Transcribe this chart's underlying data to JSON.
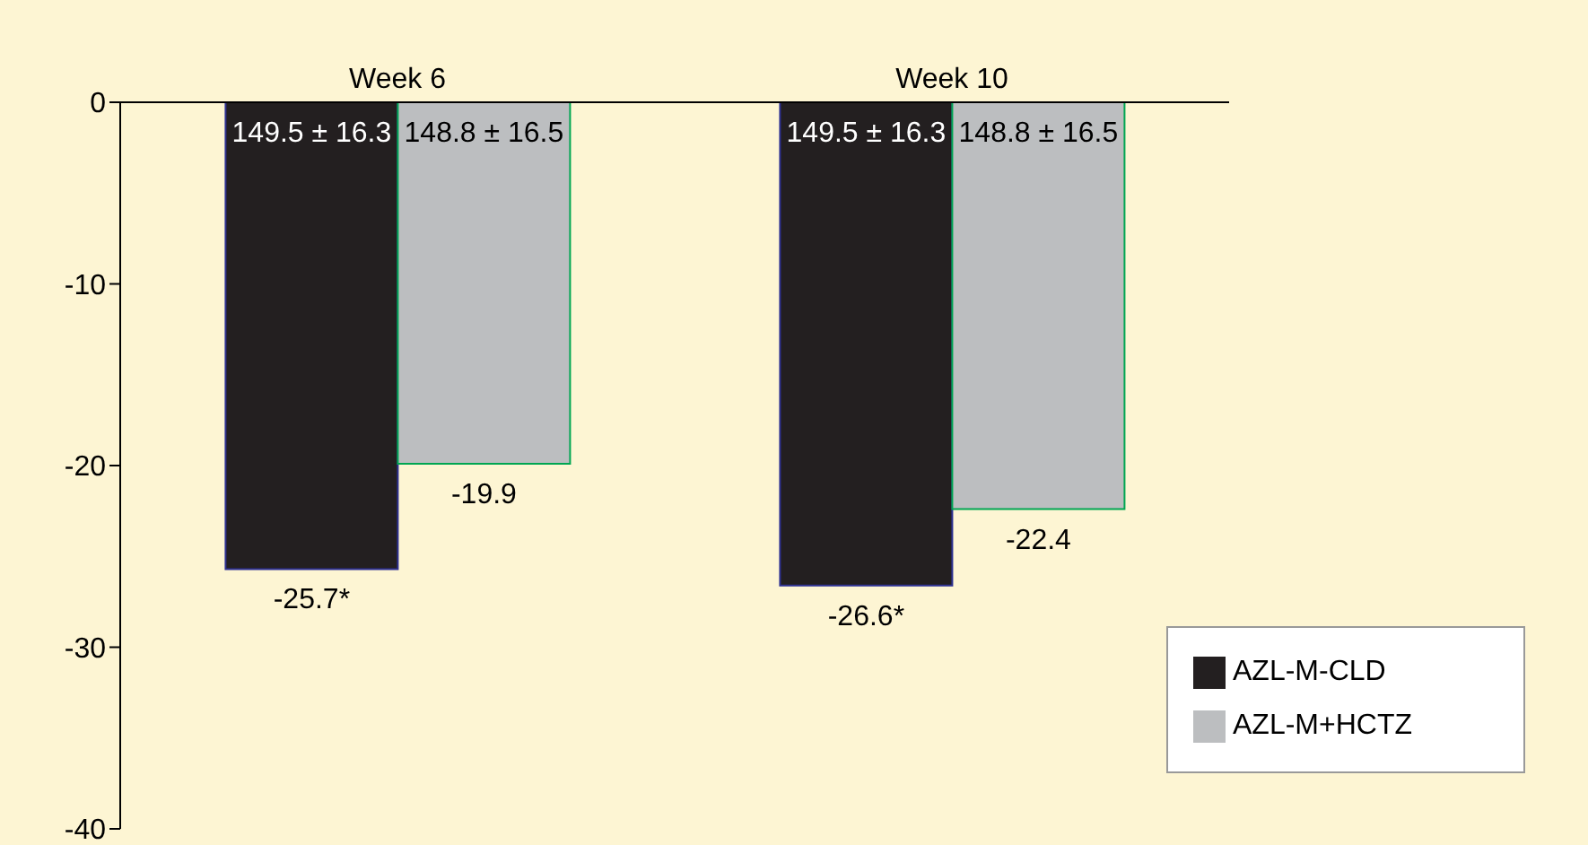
{
  "chart_data": {
    "type": "bar",
    "categories": [
      "Week 6",
      "Week 10"
    ],
    "series": [
      {
        "name": "AZL-M-CLD",
        "color": "#231f20",
        "values": [
          -25.7,
          -26.6
        ],
        "value_labels": [
          "-25.7*",
          "-26.6*"
        ]
      },
      {
        "name": "AZL-M+HCTZ",
        "color": "#bcbec0",
        "values": [
          -19.9,
          -22.4
        ],
        "value_labels": [
          "-19.9",
          "-22.4"
        ]
      }
    ],
    "annotations": [
      {
        "text": "149.5 ± 16.3",
        "x": "Week 6",
        "y": 0
      },
      {
        "text": "148.8 ± 16.5",
        "x": "Week 6",
        "y": 0
      },
      {
        "text": "149.5 ± 16.3",
        "x": "Week 10",
        "y": 0
      },
      {
        "text": "148.8 ± 16.5",
        "x": "Week 10",
        "y": 0
      }
    ],
    "ylim": [
      -40,
      0
    ],
    "yticks": [
      0,
      -10,
      -20,
      -30,
      -40
    ],
    "grid": false,
    "legend": "bottom right"
  }
}
